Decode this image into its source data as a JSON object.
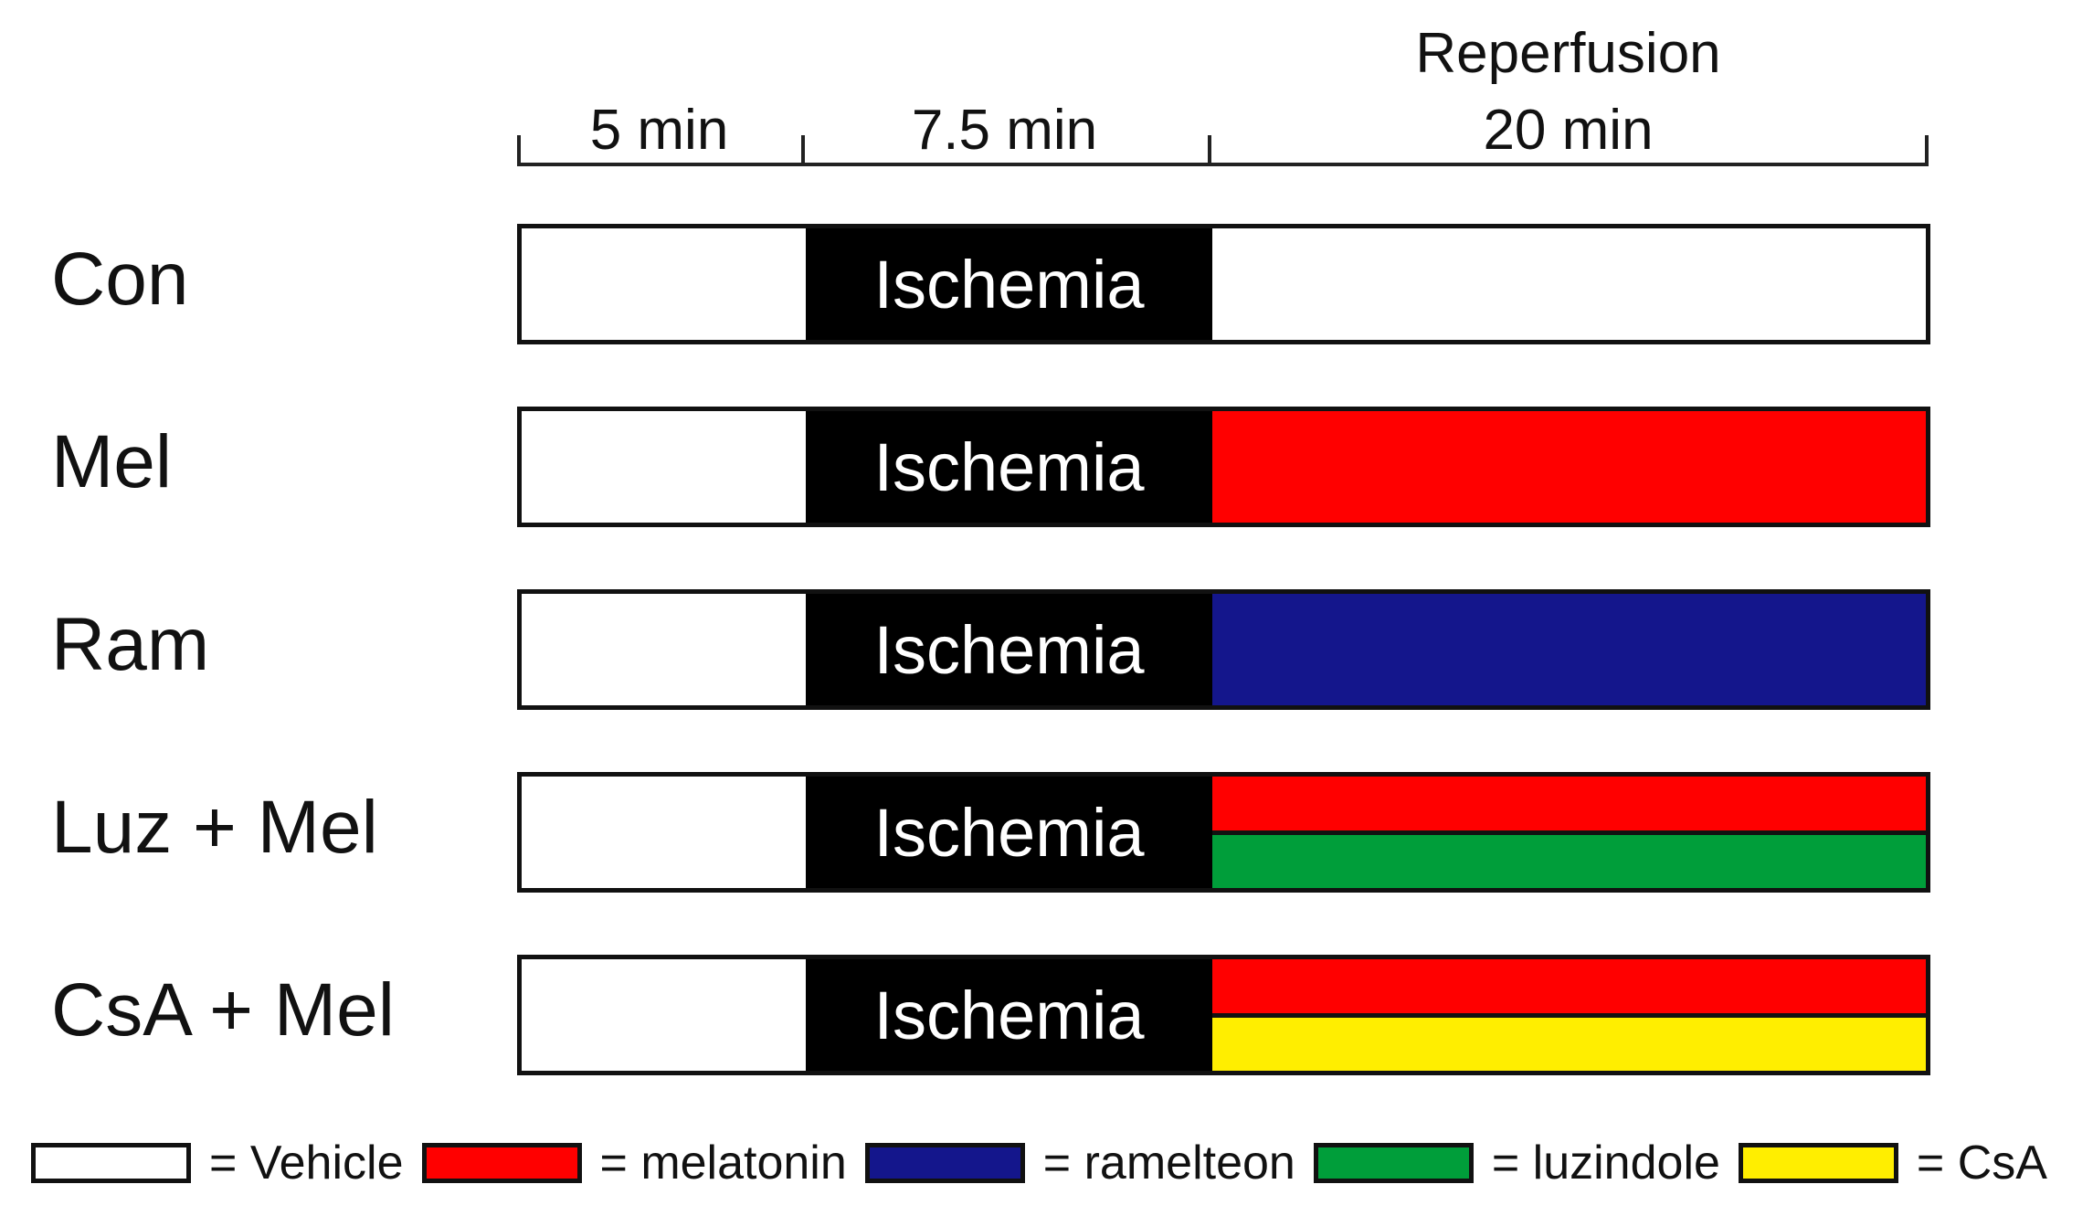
{
  "timeline": {
    "phase_labels": [
      "5 min",
      "7.5 min",
      "Reperfusion",
      "20 min"
    ]
  },
  "ischemia_label": "Ischemia",
  "groups": [
    {
      "label": "Con",
      "reperfusion_colors": [
        "#ffffff"
      ]
    },
    {
      "label": "Mel",
      "reperfusion_colors": [
        "#ff0000"
      ]
    },
    {
      "label": "Ram",
      "reperfusion_colors": [
        "#14168c"
      ]
    },
    {
      "label": "Luz + Mel",
      "reperfusion_colors": [
        "#ff0000",
        "#009e3a"
      ]
    },
    {
      "label": "CsA + Mel",
      "reperfusion_colors": [
        "#ff0000",
        "#ffee00"
      ]
    }
  ],
  "legend": [
    {
      "text": "= Vehicle",
      "color": "#ffffff"
    },
    {
      "text": "= melatonin",
      "color": "#ff0000"
    },
    {
      "text": "= ramelteon",
      "color": "#14168c"
    },
    {
      "text": "= luzindole",
      "color": "#009e3a"
    },
    {
      "text": "= CsA",
      "color": "#ffee00"
    }
  ]
}
